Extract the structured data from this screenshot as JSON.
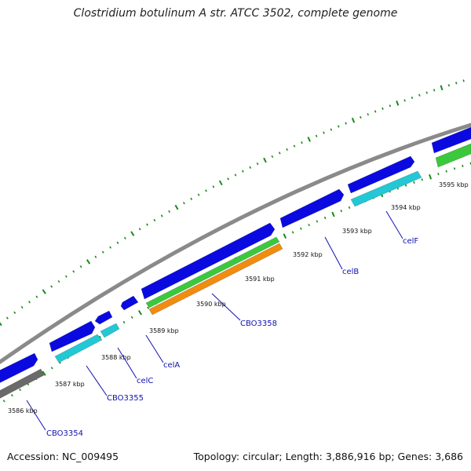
{
  "title": "Clostridium botulinum A str. ATCC 3502, complete genome",
  "footer": {
    "accession": "Accession: NC_009495",
    "topology": "Topology: circular; Length: 3,886,916 bp; Genes: 3,686"
  },
  "colors": {
    "backbone": "#8a8a8a",
    "cds_blue": "#0a0ae0",
    "cyan": "#22c8d4",
    "green": "#3cc83c",
    "orange": "#f08c10",
    "gray": "#6a6a6a",
    "tick": "#1a8a1a",
    "label": "#1010b0"
  },
  "scale_labels": [
    "3586 kbp",
    "3587 kbp",
    "3588 kbp",
    "3589 kbp",
    "3590 kbp",
    "3591 kbp",
    "3592 kbp",
    "3593 kbp",
    "3594 kbp",
    "3595 kbp"
  ],
  "gene_labels": [
    "CBO3354",
    "CBO3355",
    "celC",
    "celA",
    "CBO3358",
    "celB",
    "celF"
  ]
}
